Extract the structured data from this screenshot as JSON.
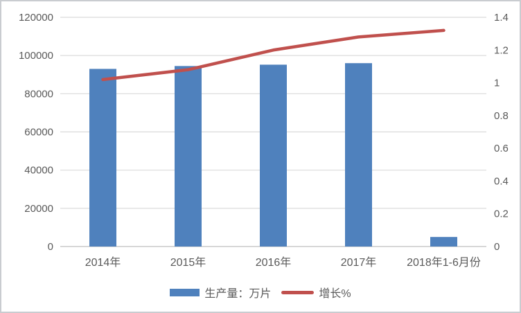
{
  "chart_data": {
    "type": "combo",
    "title": "",
    "categories": [
      "2014年",
      "2015年",
      "2016年",
      "2017年",
      "2018年1-6月份"
    ],
    "series": [
      {
        "name": "生产量：万片",
        "chart_type": "bar",
        "axis": "left",
        "color": "#4f81bd",
        "values": [
          93000,
          94500,
          95200,
          96000,
          5000
        ]
      },
      {
        "name": "增长%",
        "chart_type": "line",
        "axis": "right",
        "color": "#c0504d",
        "values": [
          1.02,
          1.08,
          1.2,
          1.28,
          1.32
        ]
      }
    ],
    "left_axis": {
      "min": 0,
      "max": 120000,
      "step": 20000,
      "ticks": [
        "0",
        "20000",
        "40000",
        "60000",
        "80000",
        "100000",
        "120000"
      ]
    },
    "right_axis": {
      "min": 0,
      "max": 1.4,
      "step": 0.2,
      "ticks": [
        "0",
        "0.2",
        "0.4",
        "0.6",
        "0.8",
        "1",
        "1.2",
        "1.4"
      ]
    },
    "grid": true,
    "legend_position": "bottom",
    "background": "#ffffff",
    "gridline_color": "#d9d9d9",
    "zero_line_color": "#bfbfbf",
    "text_color": "#595959"
  }
}
